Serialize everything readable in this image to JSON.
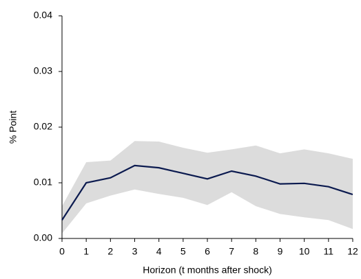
{
  "chart_data": {
    "type": "line",
    "y_label": "% Point",
    "x_label": "Horizon (t months after shock)",
    "x": [
      0,
      1,
      2,
      3,
      4,
      5,
      6,
      7,
      8,
      9,
      10,
      11,
      12
    ],
    "values": [
      0.0033,
      0.01,
      0.0109,
      0.0131,
      0.0127,
      0.0117,
      0.0107,
      0.0121,
      0.0112,
      0.0098,
      0.0099,
      0.0093,
      0.0079
    ],
    "color": "#0b1a4f",
    "band": {
      "upper": [
        0.0058,
        0.0137,
        0.014,
        0.0175,
        0.0174,
        0.0163,
        0.0154,
        0.016,
        0.0167,
        0.0153,
        0.016,
        0.0153,
        0.0143
      ],
      "lower": [
        0.0009,
        0.0063,
        0.0077,
        0.0088,
        0.008,
        0.0073,
        0.006,
        0.0083,
        0.0058,
        0.0044,
        0.0038,
        0.0033,
        0.0017
      ],
      "color": "#dcdcdc"
    },
    "xlim": [
      0,
      12
    ],
    "xticks": [
      0,
      1,
      2,
      3,
      4,
      5,
      6,
      7,
      8,
      9,
      10,
      11,
      12
    ],
    "ylim": [
      0,
      0.04
    ],
    "yticks": [
      {
        "value": 0,
        "label": "0.00"
      },
      {
        "value": 0.01,
        "label": "0.01"
      },
      {
        "value": 0.02,
        "label": "0.02"
      },
      {
        "value": 0.03,
        "label": "0.03"
      },
      {
        "value": 0.04,
        "label": "0.04"
      }
    ],
    "grid": false
  }
}
